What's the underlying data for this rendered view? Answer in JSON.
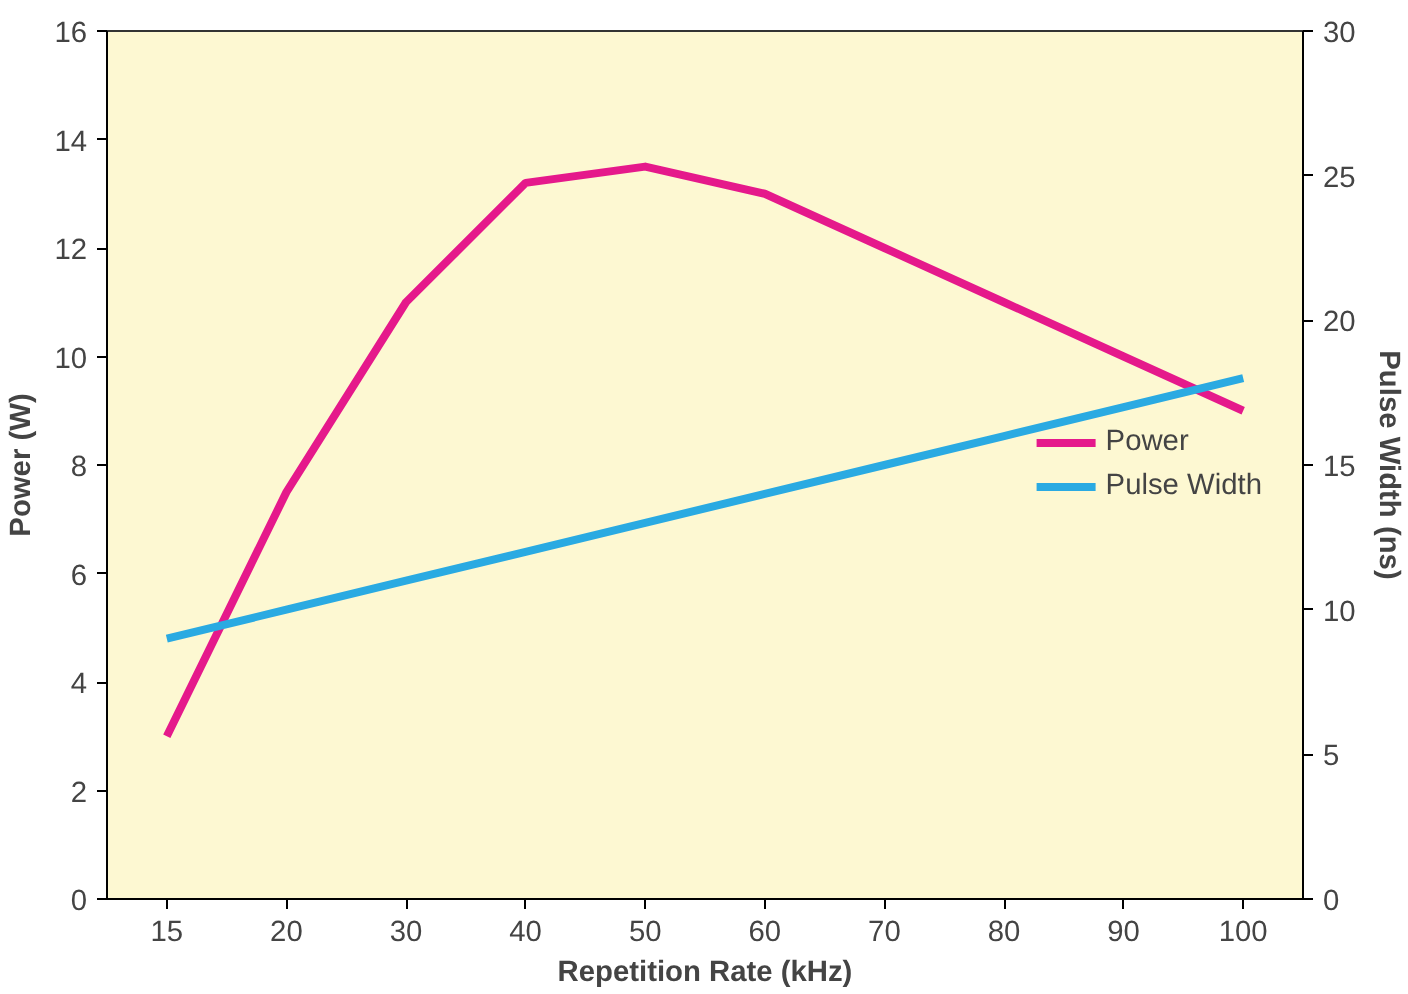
{
  "chart_data": {
    "type": "line",
    "xlabel": "Repetition Rate (kHz)",
    "ylabel": "Power (W)",
    "y2label": "Pulse Width (ns)",
    "categories": [
      "15",
      "20",
      "30",
      "40",
      "50",
      "60",
      "70",
      "80",
      "90",
      "100"
    ],
    "series": [
      {
        "name": "Power",
        "color": "#e5198b",
        "values": [
          3.0,
          7.5,
          11.0,
          13.2,
          13.5,
          13.0,
          12.0,
          11.0,
          10.0,
          9.0
        ]
      },
      {
        "name": "Pulse Width",
        "color": "#2aaae2",
        "axis": "y2",
        "values": [
          9,
          10,
          11,
          12,
          13,
          14,
          15,
          16,
          17,
          18
        ]
      }
    ],
    "ylim": [
      0,
      16
    ],
    "yticks": [
      0,
      2,
      4,
      6,
      8,
      10,
      12,
      14,
      16
    ],
    "y2lim": [
      0,
      30
    ],
    "y2ticks": [
      0,
      5,
      10,
      15,
      20,
      25,
      30
    ],
    "grid": false,
    "legend": "right",
    "marker": "none",
    "line_style": "solid"
  }
}
